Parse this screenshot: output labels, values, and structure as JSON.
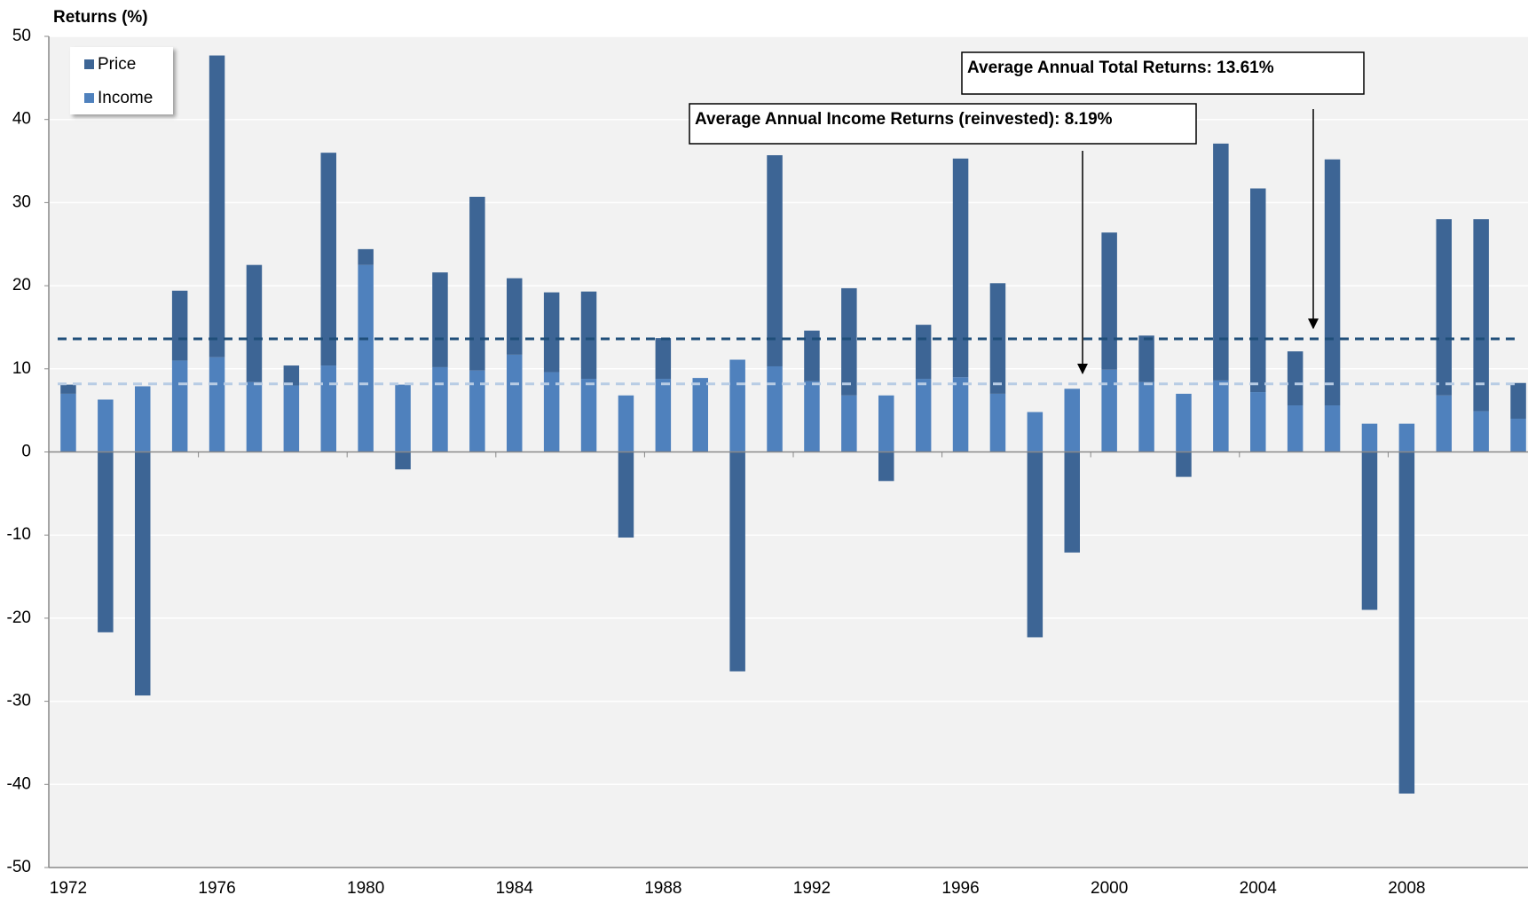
{
  "chart_data": {
    "type": "stacked-bar",
    "y_label": "Returns (%)",
    "categories": [
      "1972",
      null,
      null,
      null,
      "1976",
      null,
      null,
      null,
      "1980",
      null,
      null,
      null,
      "1984",
      null,
      null,
      null,
      "1988",
      null,
      null,
      null,
      "1992",
      null,
      null,
      null,
      "1996",
      null,
      null,
      null,
      "2000",
      null,
      null,
      null,
      "2004",
      null,
      null,
      null,
      "2008",
      null,
      null,
      null
    ],
    "series": [
      {
        "name": "Price",
        "color": "#3d6595",
        "values": [
          1.1,
          -21.7,
          -29.3,
          8.4,
          36.3,
          14.1,
          2.4,
          25.6,
          1.9,
          -2.1,
          11.4,
          20.9,
          9.2,
          9.6,
          10.5,
          -10.3,
          4.9,
          0,
          -26.4,
          25.4,
          6.1,
          12.9,
          -3.5,
          6.5,
          26.3,
          13.3,
          -22.3,
          -12.1,
          16.5,
          5.6,
          -3.0,
          28.5,
          24.5,
          6.5,
          29.6,
          -19.0,
          -41.1,
          21.2,
          23.1,
          4.3
        ]
      },
      {
        "name": "Income",
        "color": "#4f81bd",
        "values": [
          7.0,
          6.3,
          7.9,
          11.0,
          11.4,
          8.4,
          8.0,
          10.4,
          22.5,
          8.1,
          10.2,
          9.8,
          11.7,
          9.6,
          8.8,
          6.8,
          8.8,
          8.9,
          11.1,
          10.3,
          8.5,
          6.8,
          6.8,
          8.8,
          9.0,
          7.0,
          4.8,
          7.6,
          9.9,
          8.4,
          7.0,
          8.6,
          7.2,
          5.6,
          5.6,
          3.4,
          3.4,
          6.8,
          4.9,
          4.0
        ]
      }
    ],
    "ylim": [
      -50,
      50
    ],
    "yticks": [
      -50,
      -40,
      -30,
      -20,
      -10,
      0,
      10,
      20,
      30,
      40,
      50
    ],
    "annotations": [
      {
        "text": "Average Annual Total Returns: 13.61%",
        "value": 13.61,
        "color": "#1f4e79"
      },
      {
        "text": "Average Annual Income Returns (reinvested): 8.19%",
        "value": 8.19,
        "color": "#b8cce4"
      }
    ],
    "legend": "top-left"
  }
}
